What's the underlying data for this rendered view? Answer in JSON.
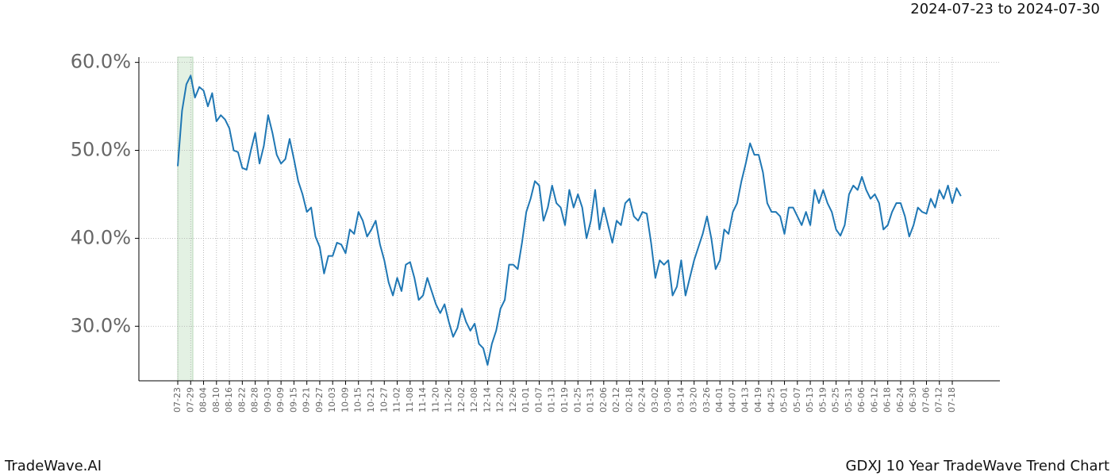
{
  "chart_data": {
    "type": "line",
    "title": "GDXJ 10 Year TradeWave Trend Chart",
    "subtitle": "2024-07-23 to 2024-07-30",
    "brand": "TradeWave.AI",
    "categories": [
      "07-23",
      null,
      null,
      "07-29",
      null,
      null,
      "08-04",
      null,
      null,
      "08-10",
      null,
      null,
      "08-16",
      null,
      null,
      "08-22",
      null,
      null,
      "08-28",
      null,
      null,
      "09-03",
      null,
      null,
      "09-09",
      null,
      null,
      "09-15",
      null,
      null,
      "09-21",
      null,
      null,
      "09-27",
      null,
      null,
      "10-03",
      null,
      null,
      "10-09",
      null,
      null,
      "10-15",
      null,
      null,
      "10-21",
      null,
      null,
      "10-27",
      null,
      null,
      "11-02",
      null,
      null,
      "11-08",
      null,
      null,
      "11-14",
      null,
      null,
      "11-20",
      null,
      null,
      "11-26",
      null,
      null,
      "12-02",
      null,
      null,
      "12-08",
      null,
      null,
      "12-14",
      null,
      null,
      "12-20",
      null,
      null,
      "12-26",
      null,
      null,
      "01-01",
      null,
      null,
      "01-07",
      null,
      null,
      "01-13",
      null,
      null,
      "01-19",
      null,
      null,
      "01-25",
      null,
      null,
      "01-31",
      null,
      null,
      "02-06",
      null,
      null,
      "02-12",
      null,
      null,
      "02-18",
      null,
      null,
      "02-24",
      null,
      null,
      "03-02",
      null,
      null,
      "03-08",
      null,
      null,
      "03-14",
      null,
      null,
      "03-20",
      null,
      null,
      "03-26",
      null,
      null,
      "04-01",
      null,
      null,
      "04-07",
      null,
      null,
      "04-13",
      null,
      null,
      "04-19",
      null,
      null,
      "04-25",
      null,
      null,
      "05-01",
      null,
      null,
      "05-07",
      null,
      null,
      "05-13",
      null,
      null,
      "05-19",
      null,
      null,
      "05-25",
      null,
      null,
      "05-31",
      null,
      null,
      "06-06",
      null,
      null,
      "06-12",
      null,
      null,
      "06-18",
      null,
      null,
      "06-24",
      null,
      null,
      "06-30",
      null,
      null,
      "07-06",
      null,
      null,
      "07-12",
      null,
      null,
      "07-18",
      null,
      null
    ],
    "values": [
      48.2,
      54.5,
      57.5,
      58.5,
      56,
      57.2,
      56.8,
      55,
      56.5,
      53.3,
      54,
      53.5,
      52.5,
      50,
      49.8,
      48,
      47.8,
      50,
      52,
      48.5,
      50.5,
      54,
      52,
      49.5,
      48.5,
      49,
      51.3,
      49,
      46.5,
      45,
      43,
      43.5,
      40.2,
      39,
      36,
      38,
      38,
      39.5,
      39.3,
      38.3,
      41,
      40.5,
      43,
      42,
      40.2,
      41,
      42,
      39.3,
      37.5,
      35,
      33.5,
      35.5,
      34,
      37,
      37.3,
      35.5,
      33,
      33.5,
      35.5,
      34,
      32.5,
      31.5,
      32.5,
      30.5,
      28.8,
      29.8,
      32,
      30.5,
      29.5,
      30.3,
      28,
      27.5,
      25.6,
      28,
      29.5,
      32,
      33,
      37,
      37,
      36.5,
      39.5,
      43,
      44.5,
      46.5,
      46,
      42,
      43.5,
      46,
      44,
      43.5,
      41.5,
      45.5,
      43.5,
      45,
      43.5,
      40,
      42,
      45.5,
      41,
      43.5,
      41.5,
      39.5,
      42,
      41.5,
      44,
      44.5,
      42.5,
      42,
      43,
      42.8,
      39.5,
      35.5,
      37.5,
      37,
      37.5,
      33.5,
      34.5,
      37.5,
      33.5,
      35.5,
      37.5,
      39,
      40.5,
      42.5,
      40,
      36.5,
      37.5,
      41,
      40.5,
      43,
      44,
      46.5,
      48.5,
      50.8,
      49.5,
      49.5,
      47.5,
      44,
      43,
      43,
      42.5,
      40.5,
      43.5,
      43.5,
      42.5,
      41.5,
      43,
      41.5,
      45.5,
      44,
      45.5,
      44,
      43,
      41,
      40.3,
      41.5,
      45,
      46,
      45.5,
      47,
      45.5,
      44.5,
      45,
      44,
      41,
      41.5,
      43,
      44,
      44,
      42.5,
      40.2,
      41.5,
      43.5,
      43,
      42.8,
      44.5,
      43.5,
      45.5,
      44.5,
      46,
      44,
      45.7,
      44.8
    ],
    "color": "#1f77b4",
    "ylim": [
      23.8,
      60.6
    ],
    "yticks": [
      {
        "value": 30,
        "label": "30.0%"
      },
      {
        "value": 40,
        "label": "40.0%"
      },
      {
        "value": 50,
        "label": "50.0%"
      },
      {
        "value": 60,
        "label": "60.0%"
      }
    ],
    "grid": true
  }
}
